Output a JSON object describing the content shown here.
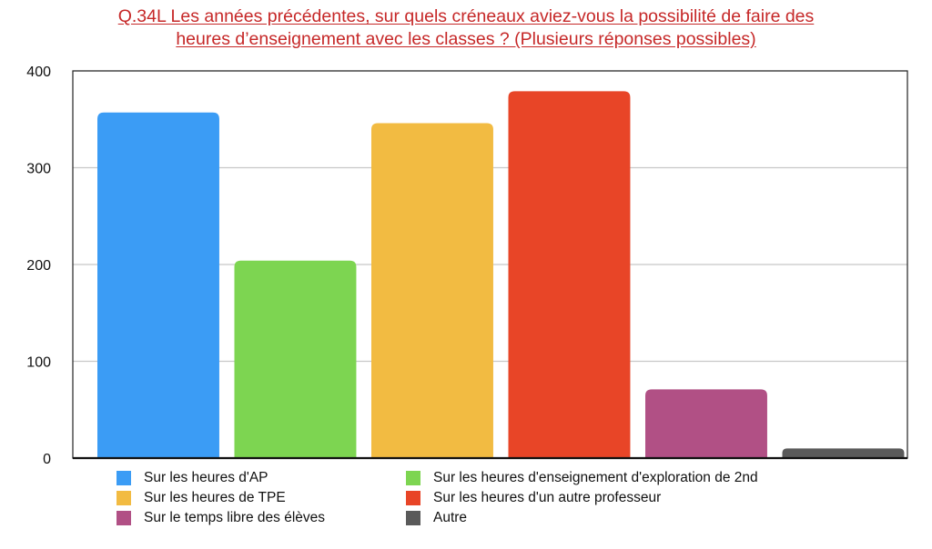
{
  "chart_data": {
    "type": "bar",
    "title_lines": [
      "Q.34L Les années précédentes, sur quels créneaux aviez-vous la possibilité de faire des",
      "heures d’enseignement avec les classes ? (Plusieurs réponses possibles)"
    ],
    "categories": [
      "Sur les heures d'AP",
      "Sur les heures d'enseignement d'exploration de 2nd",
      "Sur les heures de TPE",
      "Sur les heures d'un autre professeur",
      "Sur le temps libre des élèves",
      "Autre"
    ],
    "values": [
      357,
      204,
      346,
      379,
      71,
      10
    ],
    "colors": [
      "#3b9cf5",
      "#7dd551",
      "#f2bb42",
      "#e84527",
      "#b15085",
      "#5a5a5a"
    ],
    "ylim": [
      0,
      400
    ],
    "yticks": [
      "0",
      "100",
      "200",
      "300",
      "400"
    ],
    "grid": true,
    "legend_position": "bottom",
    "legend_order": [
      0,
      1,
      2,
      3,
      4,
      5
    ]
  }
}
